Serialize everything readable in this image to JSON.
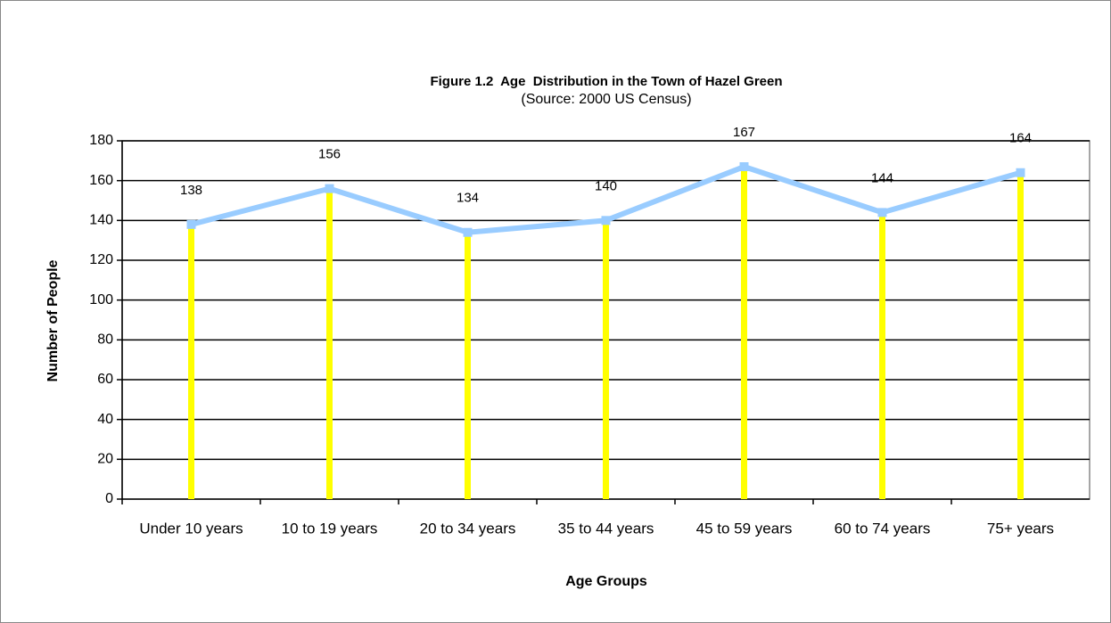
{
  "chart_data": {
    "type": "line",
    "title": "Figure 1.2  Age  Distribution in the Town of Hazel Green",
    "subtitle": "(Source: 2000 US Census)",
    "x_label": "Age Groups",
    "y_label": "Number of People",
    "categories": [
      "Under 10 years",
      "10 to 19 years",
      "20 to 34 years",
      "35 to 44 years",
      "45 to 59 years",
      "60 to 74 years",
      "75+ years"
    ],
    "values": [
      138,
      156,
      134,
      140,
      167,
      144,
      164
    ],
    "color": "#99ccff",
    "drop_line_color": "#ffff00",
    "ylim": [
      0,
      180
    ],
    "yticks": [
      0,
      20,
      40,
      60,
      80,
      100,
      120,
      140,
      160,
      180
    ],
    "grid": true
  }
}
